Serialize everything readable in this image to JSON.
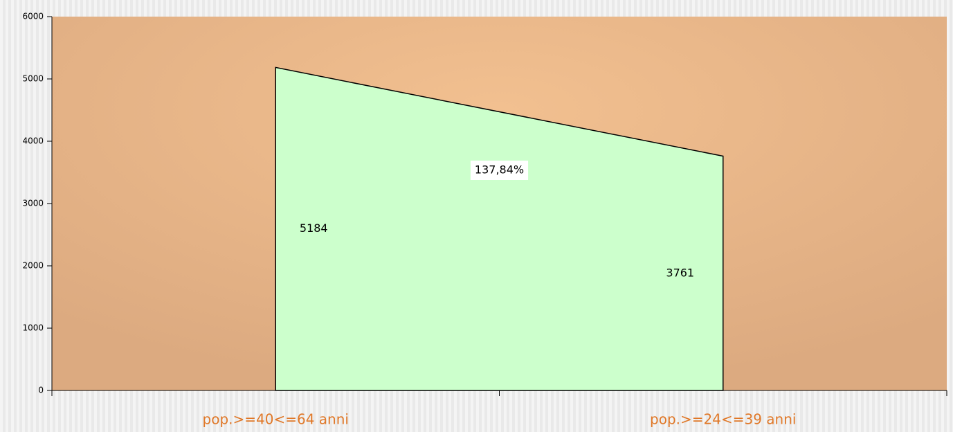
{
  "chart_data": {
    "type": "area",
    "categories": [
      "pop.>=40<=64 anni",
      "pop.>=24<=39 anni"
    ],
    "series": [
      {
        "color": "#ccffcc",
        "values": [
          5184,
          3761
        ]
      }
    ],
    "annotation": "137,84%",
    "ylim": [
      0,
      6000
    ],
    "yticks": [
      0,
      1000,
      2000,
      3000,
      4000,
      5000,
      6000
    ]
  }
}
